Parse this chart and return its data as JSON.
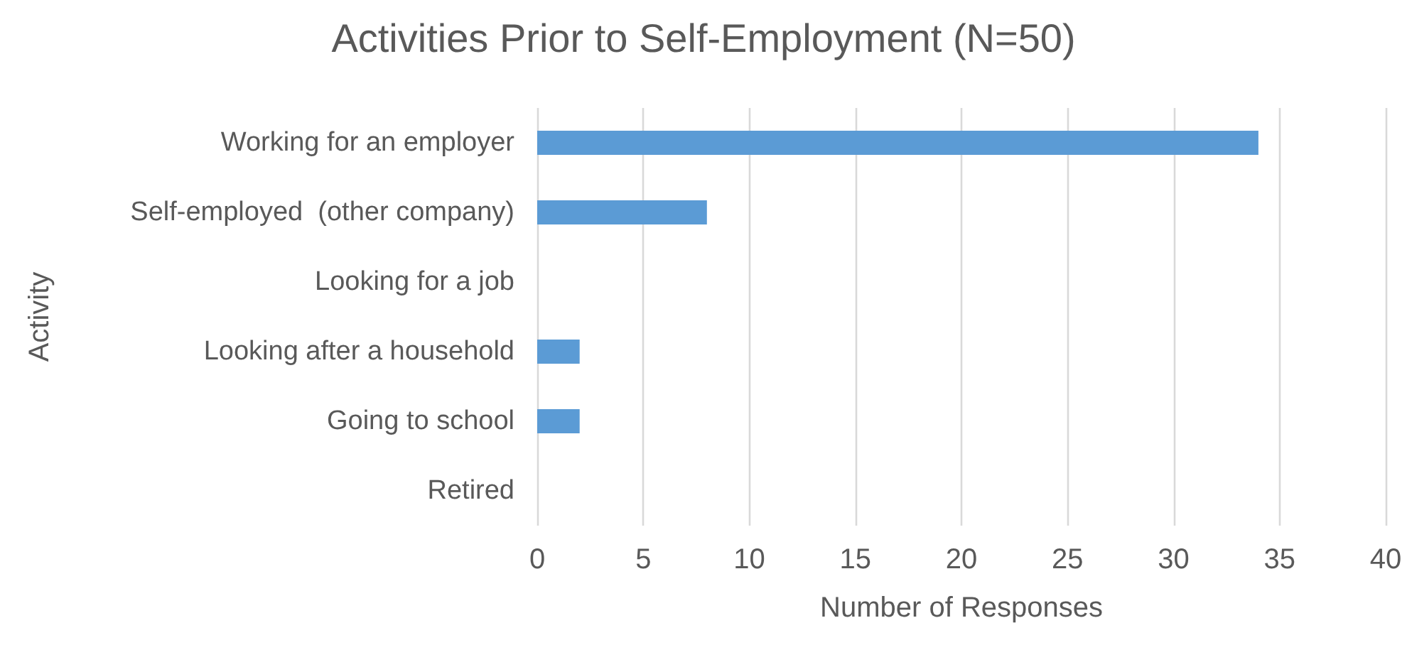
{
  "chart_data": {
    "type": "bar",
    "orientation": "horizontal",
    "title": "Activities Prior to Self-Employment (N=50)",
    "xlabel": "Number of Responses",
    "ylabel": "Activity",
    "categories": [
      "Working for an employer",
      "Self-employed  (other company)",
      "Looking for a job",
      "Looking after a household",
      "Going to school",
      "Retired"
    ],
    "values": [
      34,
      8,
      0,
      2,
      2,
      0
    ],
    "color": "#5b9bd5",
    "xlim": [
      0,
      40
    ],
    "xticks": [
      0,
      5,
      10,
      15,
      20,
      25,
      30,
      35,
      40
    ],
    "grid": "x"
  }
}
